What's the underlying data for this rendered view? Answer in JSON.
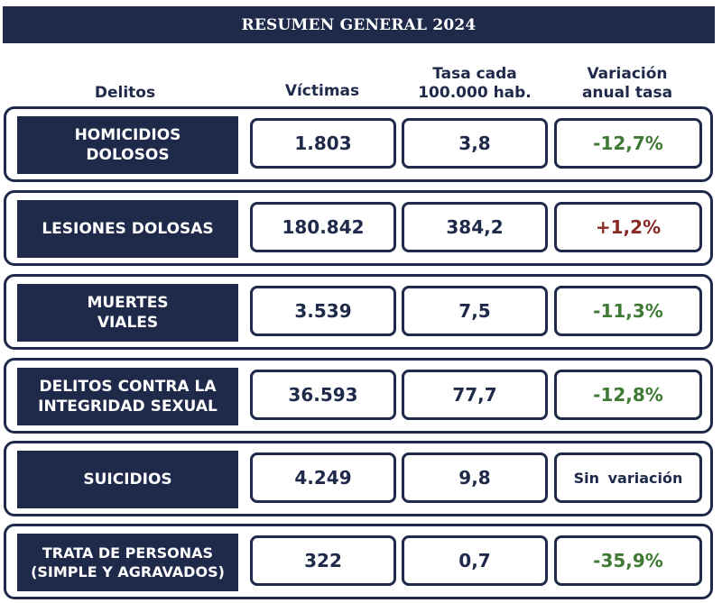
{
  "title": "RESUMEN GENERAL 2024",
  "headers": {
    "delitos": "Delitos",
    "victimas": "Víctimas",
    "tasa_line1": "Tasa cada",
    "tasa_line2": "100.000 hab.",
    "variacion_line1": "Variación",
    "variacion_line2": "anual tasa"
  },
  "rows": [
    {
      "label_line1": "HOMICIDIOS",
      "label_line2": "DOLOSOS",
      "victimas": "1.803",
      "tasa": "3,8",
      "variacion": "-12,7%",
      "variacion_color": "#3f7a34"
    },
    {
      "label_line1": "LESIONES DOLOSAS",
      "label_line2": "",
      "victimas": "180.842",
      "tasa": "384,2",
      "variacion": "+1,2%",
      "variacion_color": "#8a2a24"
    },
    {
      "label_line1": "MUERTES",
      "label_line2": "VIALES",
      "victimas": "3.539",
      "tasa": "7,5",
      "variacion": "-11,3%",
      "variacion_color": "#3f7a34"
    },
    {
      "label_line1": "DELITOS CONTRA LA",
      "label_line2": "INTEGRIDAD SEXUAL",
      "victimas": "36.593",
      "tasa": "77,7",
      "variacion": "-12,8%",
      "variacion_color": "#3f7a34"
    },
    {
      "label_line1": "SUICIDIOS",
      "label_line2": "",
      "victimas": "4.249",
      "tasa": "9,8",
      "variacion": "Sin variación",
      "variacion_color": "#1f2a4a"
    },
    {
      "label_line1": "TRATA DE PERSONAS",
      "label_line2": "(SIMPLE Y AGRAVADOS)",
      "victimas": "322",
      "tasa": "0,7",
      "variacion": "-35,9%",
      "variacion_color": "#3f7a34"
    }
  ],
  "colors": {
    "navy": "#1f2a4a",
    "negative_change": "#3f7a34",
    "positive_change": "#8a2a24"
  }
}
